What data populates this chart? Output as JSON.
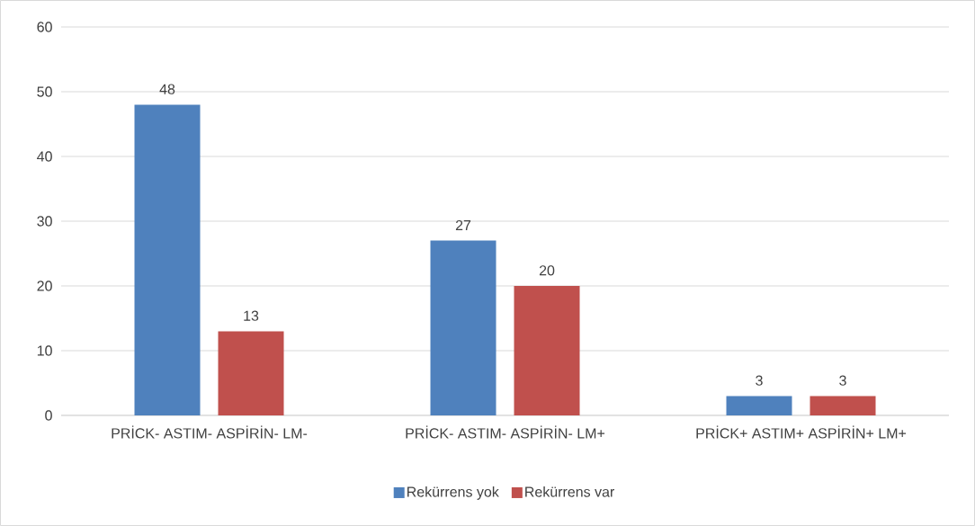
{
  "chart_data": {
    "type": "bar",
    "categories": [
      "PRİCK- ASTIM- ASPİRİN- LM-",
      "PRİCK- ASTIM- ASPİRİN- LM+",
      "PRİCK+ ASTIM+ ASPİRİN+ LM+"
    ],
    "series": [
      {
        "name": "Rekürrens yok",
        "color": "#4f81bd",
        "values": [
          48,
          27,
          3
        ]
      },
      {
        "name": "Rekürrens var",
        "color": "#c0504d",
        "values": [
          13,
          20,
          3
        ]
      }
    ],
    "ylim": [
      0,
      60
    ],
    "yticks": [
      0,
      10,
      20,
      30,
      40,
      50,
      60
    ],
    "grid": "y",
    "legend": "bottom",
    "data_labels": true
  }
}
